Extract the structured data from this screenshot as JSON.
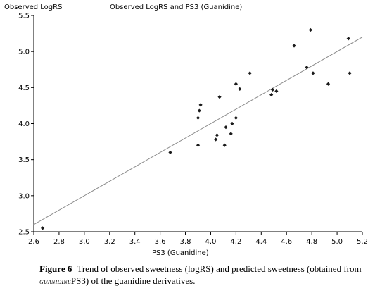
{
  "chart_data": {
    "type": "scatter",
    "title": "Observed LogRS and PS3 (Guanidine)",
    "ylabel": "Observed LogRS",
    "xlabel": "PS3 (Guanidine)",
    "xlim": [
      2.6,
      5.2
    ],
    "ylim": [
      2.5,
      5.5
    ],
    "x_ticks": [
      "2.6",
      "2.8",
      "3.0",
      "3.2",
      "3.4",
      "3.6",
      "3.8",
      "4.0",
      "4.2",
      "4.4",
      "4.6",
      "4.8",
      "5.0",
      "5.2"
    ],
    "y_ticks": [
      "2.5",
      "3.0",
      "3.5",
      "4.0",
      "4.5",
      "5.0",
      "5.5"
    ],
    "grid": false,
    "points": [
      {
        "x": 2.67,
        "y": 2.55
      },
      {
        "x": 3.68,
        "y": 3.6
      },
      {
        "x": 3.9,
        "y": 3.7
      },
      {
        "x": 3.9,
        "y": 4.08
      },
      {
        "x": 3.91,
        "y": 4.18
      },
      {
        "x": 3.92,
        "y": 4.26
      },
      {
        "x": 4.04,
        "y": 3.78
      },
      {
        "x": 4.05,
        "y": 3.84
      },
      {
        "x": 4.07,
        "y": 4.37
      },
      {
        "x": 4.11,
        "y": 3.7
      },
      {
        "x": 4.12,
        "y": 3.95
      },
      {
        "x": 4.16,
        "y": 3.86
      },
      {
        "x": 4.17,
        "y": 4.0
      },
      {
        "x": 4.2,
        "y": 4.08
      },
      {
        "x": 4.2,
        "y": 4.55
      },
      {
        "x": 4.23,
        "y": 4.48
      },
      {
        "x": 4.31,
        "y": 4.7
      },
      {
        "x": 4.48,
        "y": 4.4
      },
      {
        "x": 4.49,
        "y": 4.47
      },
      {
        "x": 4.52,
        "y": 4.45
      },
      {
        "x": 4.66,
        "y": 5.08
      },
      {
        "x": 4.76,
        "y": 4.78
      },
      {
        "x": 4.79,
        "y": 5.3
      },
      {
        "x": 4.81,
        "y": 4.7
      },
      {
        "x": 4.93,
        "y": 4.55
      },
      {
        "x": 5.09,
        "y": 5.18
      },
      {
        "x": 5.1,
        "y": 4.7
      }
    ],
    "trendline": {
      "x": [
        2.6,
        5.2
      ],
      "y": [
        2.6,
        5.2
      ]
    }
  },
  "caption": {
    "label": "Figure 6",
    "text_before": "Trend of observed sweetness (logRS) and predicted sweetness (obtained from",
    "superscript": "GUANIDINE",
    "text_after": "PS3) of the guanidine derivatives."
  },
  "colors": {
    "axis": "#000000",
    "points": "#1a1a1a",
    "trend": "#8c8c8c"
  }
}
